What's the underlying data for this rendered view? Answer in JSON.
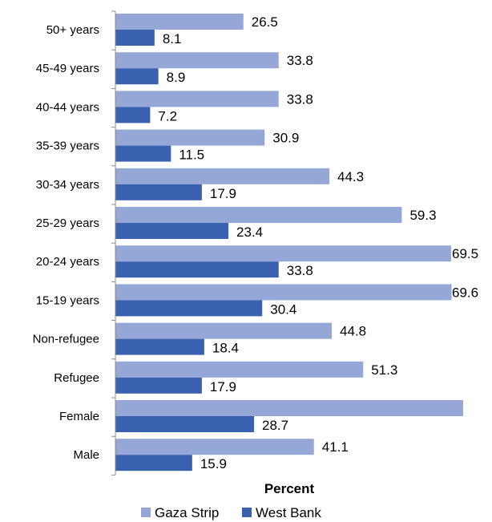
{
  "chart_data": {
    "type": "bar",
    "orientation": "horizontal",
    "categories": [
      "50+ years",
      "45-49 years",
      "40-44 years",
      "35-39 years",
      "30-34 years",
      "25-29 years",
      "20-24 years",
      "15-19 years",
      "Non-refugee",
      "Refugee",
      "Female",
      "Male"
    ],
    "series": [
      {
        "name": "Gaza Strip",
        "color": "#95A7D7",
        "values": [
          26.5,
          33.8,
          33.8,
          30.9,
          44.3,
          59.3,
          69.5,
          69.6,
          44.8,
          51.3,
          72.0,
          41.1
        ],
        "labels": [
          "26.5",
          "33.8",
          "33.8",
          "30.9",
          "44.3",
          "59.3",
          "69.5",
          "69.6",
          "44.8",
          "51.3",
          "",
          "41.1"
        ]
      },
      {
        "name": "West Bank",
        "color": "#3A60B0",
        "values": [
          8.1,
          8.9,
          7.2,
          11.5,
          17.9,
          23.4,
          33.8,
          30.4,
          18.4,
          17.9,
          28.7,
          15.9
        ],
        "labels": [
          "8.1",
          "8.9",
          "7.2",
          "11.5",
          "17.9",
          "23.4",
          "33.8",
          "30.4",
          "18.4",
          "17.9",
          "28.7",
          "15.9"
        ]
      }
    ],
    "xlabel": "Percent",
    "xlim": [
      0,
      72
    ],
    "grid": false,
    "legend": "bottom"
  }
}
